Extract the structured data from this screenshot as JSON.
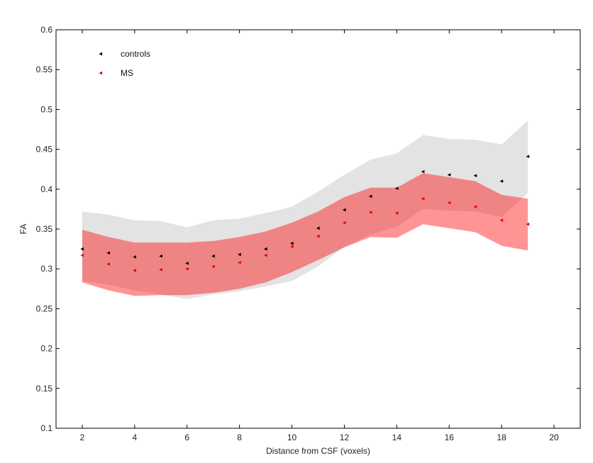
{
  "chart_data": {
    "type": "scatter",
    "title": "",
    "xlabel": "Distance from CSF (voxels)",
    "ylabel": "FA",
    "xlim": [
      1,
      21
    ],
    "ylim": [
      0.1,
      0.6
    ],
    "xticks": [
      2,
      4,
      6,
      8,
      10,
      12,
      14,
      16,
      18,
      20
    ],
    "yticks": [
      0.1,
      0.15,
      0.2,
      0.25,
      0.3,
      0.35,
      0.4,
      0.45,
      0.5,
      0.55,
      0.6
    ],
    "ytick_labels": [
      "0.1",
      "0.15",
      "0.2",
      "0.25",
      "0.3",
      "0.35",
      "0.4",
      "0.45",
      "0.5",
      "0.55",
      "0.6"
    ],
    "legend_position": "top-left",
    "series": [
      {
        "name": "controls",
        "color": "#000000",
        "band_color": "#e3e3e3",
        "x": [
          2,
          3,
          4,
          5,
          6,
          7,
          8,
          9,
          10,
          11,
          12,
          13,
          14,
          15,
          16,
          17,
          18,
          19
        ],
        "values": [
          0.325,
          0.32,
          0.315,
          0.316,
          0.307,
          0.316,
          0.318,
          0.325,
          0.332,
          0.351,
          0.374,
          0.391,
          0.401,
          0.422,
          0.418,
          0.417,
          0.41,
          0.441
        ],
        "band_upper": [
          0.372,
          0.368,
          0.361,
          0.36,
          0.352,
          0.361,
          0.363,
          0.37,
          0.378,
          0.397,
          0.418,
          0.437,
          0.445,
          0.468,
          0.463,
          0.462,
          0.456,
          0.486
        ],
        "band_lower": [
          0.285,
          0.28,
          0.273,
          0.268,
          0.262,
          0.268,
          0.272,
          0.278,
          0.285,
          0.303,
          0.328,
          0.343,
          0.353,
          0.375,
          0.373,
          0.372,
          0.365,
          0.395
        ]
      },
      {
        "name": "MS",
        "color": "#e60000",
        "band_color": "#ff0000",
        "x": [
          2,
          3,
          4,
          5,
          6,
          7,
          8,
          9,
          10,
          11,
          12,
          13,
          14,
          15,
          16,
          17,
          18,
          19
        ],
        "values": [
          0.317,
          0.306,
          0.298,
          0.299,
          0.3,
          0.303,
          0.308,
          0.317,
          0.328,
          0.341,
          0.358,
          0.371,
          0.37,
          0.388,
          0.383,
          0.378,
          0.361,
          0.356
        ],
        "band_upper": [
          0.349,
          0.34,
          0.333,
          0.333,
          0.333,
          0.335,
          0.34,
          0.347,
          0.358,
          0.372,
          0.39,
          0.402,
          0.402,
          0.42,
          0.415,
          0.41,
          0.393,
          0.388
        ],
        "band_lower": [
          0.283,
          0.273,
          0.266,
          0.267,
          0.267,
          0.27,
          0.275,
          0.283,
          0.296,
          0.311,
          0.327,
          0.34,
          0.339,
          0.356,
          0.351,
          0.346,
          0.329,
          0.323
        ]
      }
    ]
  }
}
